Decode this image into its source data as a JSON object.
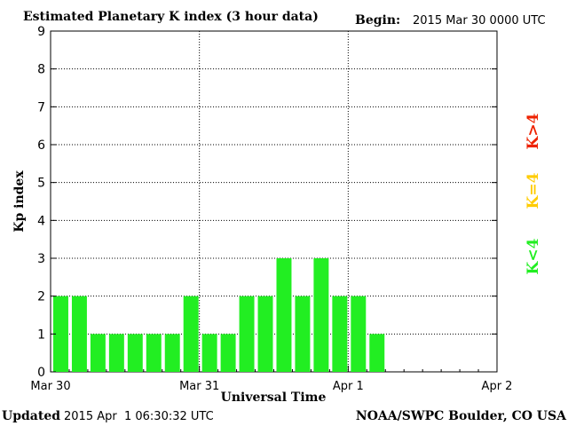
{
  "header": {
    "title": "Estimated Planetary K index (3 hour data)",
    "begin_label": "Begin:",
    "begin_value": "2015 Mar 30 0000 UTC"
  },
  "footer": {
    "updated_label": "Updated",
    "updated_value": "2015 Apr  1 06:30:32 UTC",
    "credit": "NOAA/SWPC Boulder, CO USA"
  },
  "legend": {
    "items": [
      {
        "label": "K<4",
        "color": "#22ee22"
      },
      {
        "label": "K=4",
        "color": "#ffcc00"
      },
      {
        "label": "K>4",
        "color": "#ee2200"
      }
    ]
  },
  "chart_data": {
    "type": "bar",
    "title": "Estimated Planetary K index (3 hour data)",
    "xlabel": "Universal Time",
    "ylabel": "Kp index",
    "ylim": [
      0,
      9
    ],
    "yticks": [
      "0",
      "1",
      "2",
      "3",
      "4",
      "5",
      "6",
      "7",
      "8",
      "9"
    ],
    "xticks": [
      "Mar 30",
      "Mar 31",
      "Apr 1",
      "Apr 2"
    ],
    "grid": true,
    "bar_color": "#22ee22",
    "values": [
      2,
      2,
      1,
      1,
      1,
      1,
      1,
      2,
      1,
      1,
      2,
      2,
      3,
      2,
      3,
      2,
      2,
      1
    ]
  }
}
